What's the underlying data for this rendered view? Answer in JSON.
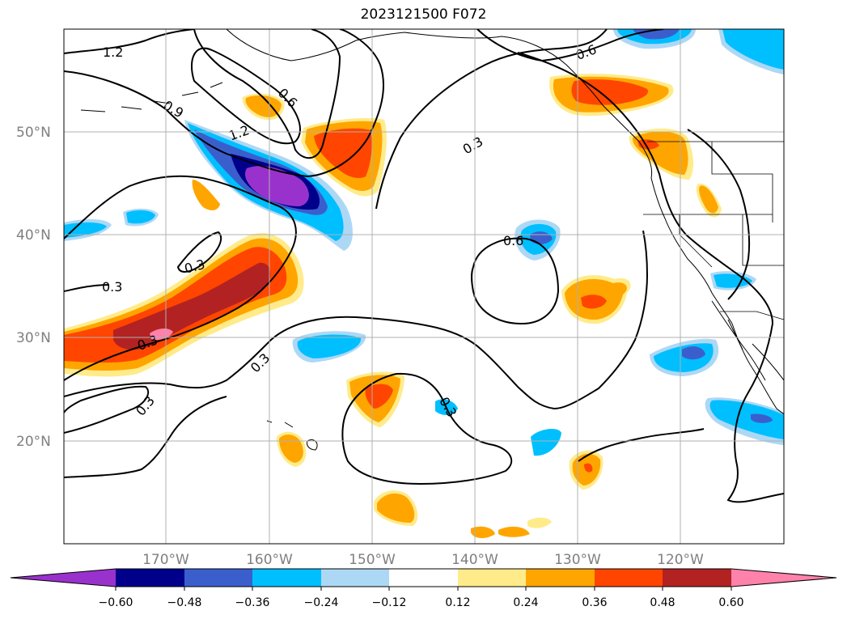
{
  "title": "2023121500 F072",
  "map": {
    "lat_labels": [
      "50°N",
      "40°N",
      "30°N",
      "20°N"
    ],
    "lon_labels": [
      "170°W",
      "160°W",
      "150°W",
      "140°W",
      "130°W",
      "120°W"
    ],
    "contour_labels": [
      "1.2",
      "0.9",
      "1.2",
      "0.6",
      "0.6",
      "0.3",
      "0.6",
      "0.3",
      "0.3",
      "0.3",
      "0.3",
      "0.3",
      "0.3"
    ],
    "colors": {
      "purple": "#9932cc",
      "navy": "#00008b",
      "royal": "#3a5fcd",
      "deepsky": "#00bfff",
      "lightblue": "#add8f5",
      "lightyellow": "#ffeb8a",
      "orange": "#ffa500",
      "orangered": "#ff4500",
      "firebrick": "#b22222",
      "pink": "#ff82ab"
    }
  },
  "colorbar": {
    "labels": [
      "−0.60",
      "−0.48",
      "−0.36",
      "−0.24",
      "−0.12",
      "0.12",
      "0.24",
      "0.36",
      "0.48",
      "0.60"
    ],
    "colors": [
      "#9932cc",
      "#00008b",
      "#3a5fcd",
      "#00bfff",
      "#add8f5",
      "#ffffff",
      "#ffeb8a",
      "#ffa500",
      "#ff4500",
      "#b22222",
      "#ff82ab"
    ]
  }
}
